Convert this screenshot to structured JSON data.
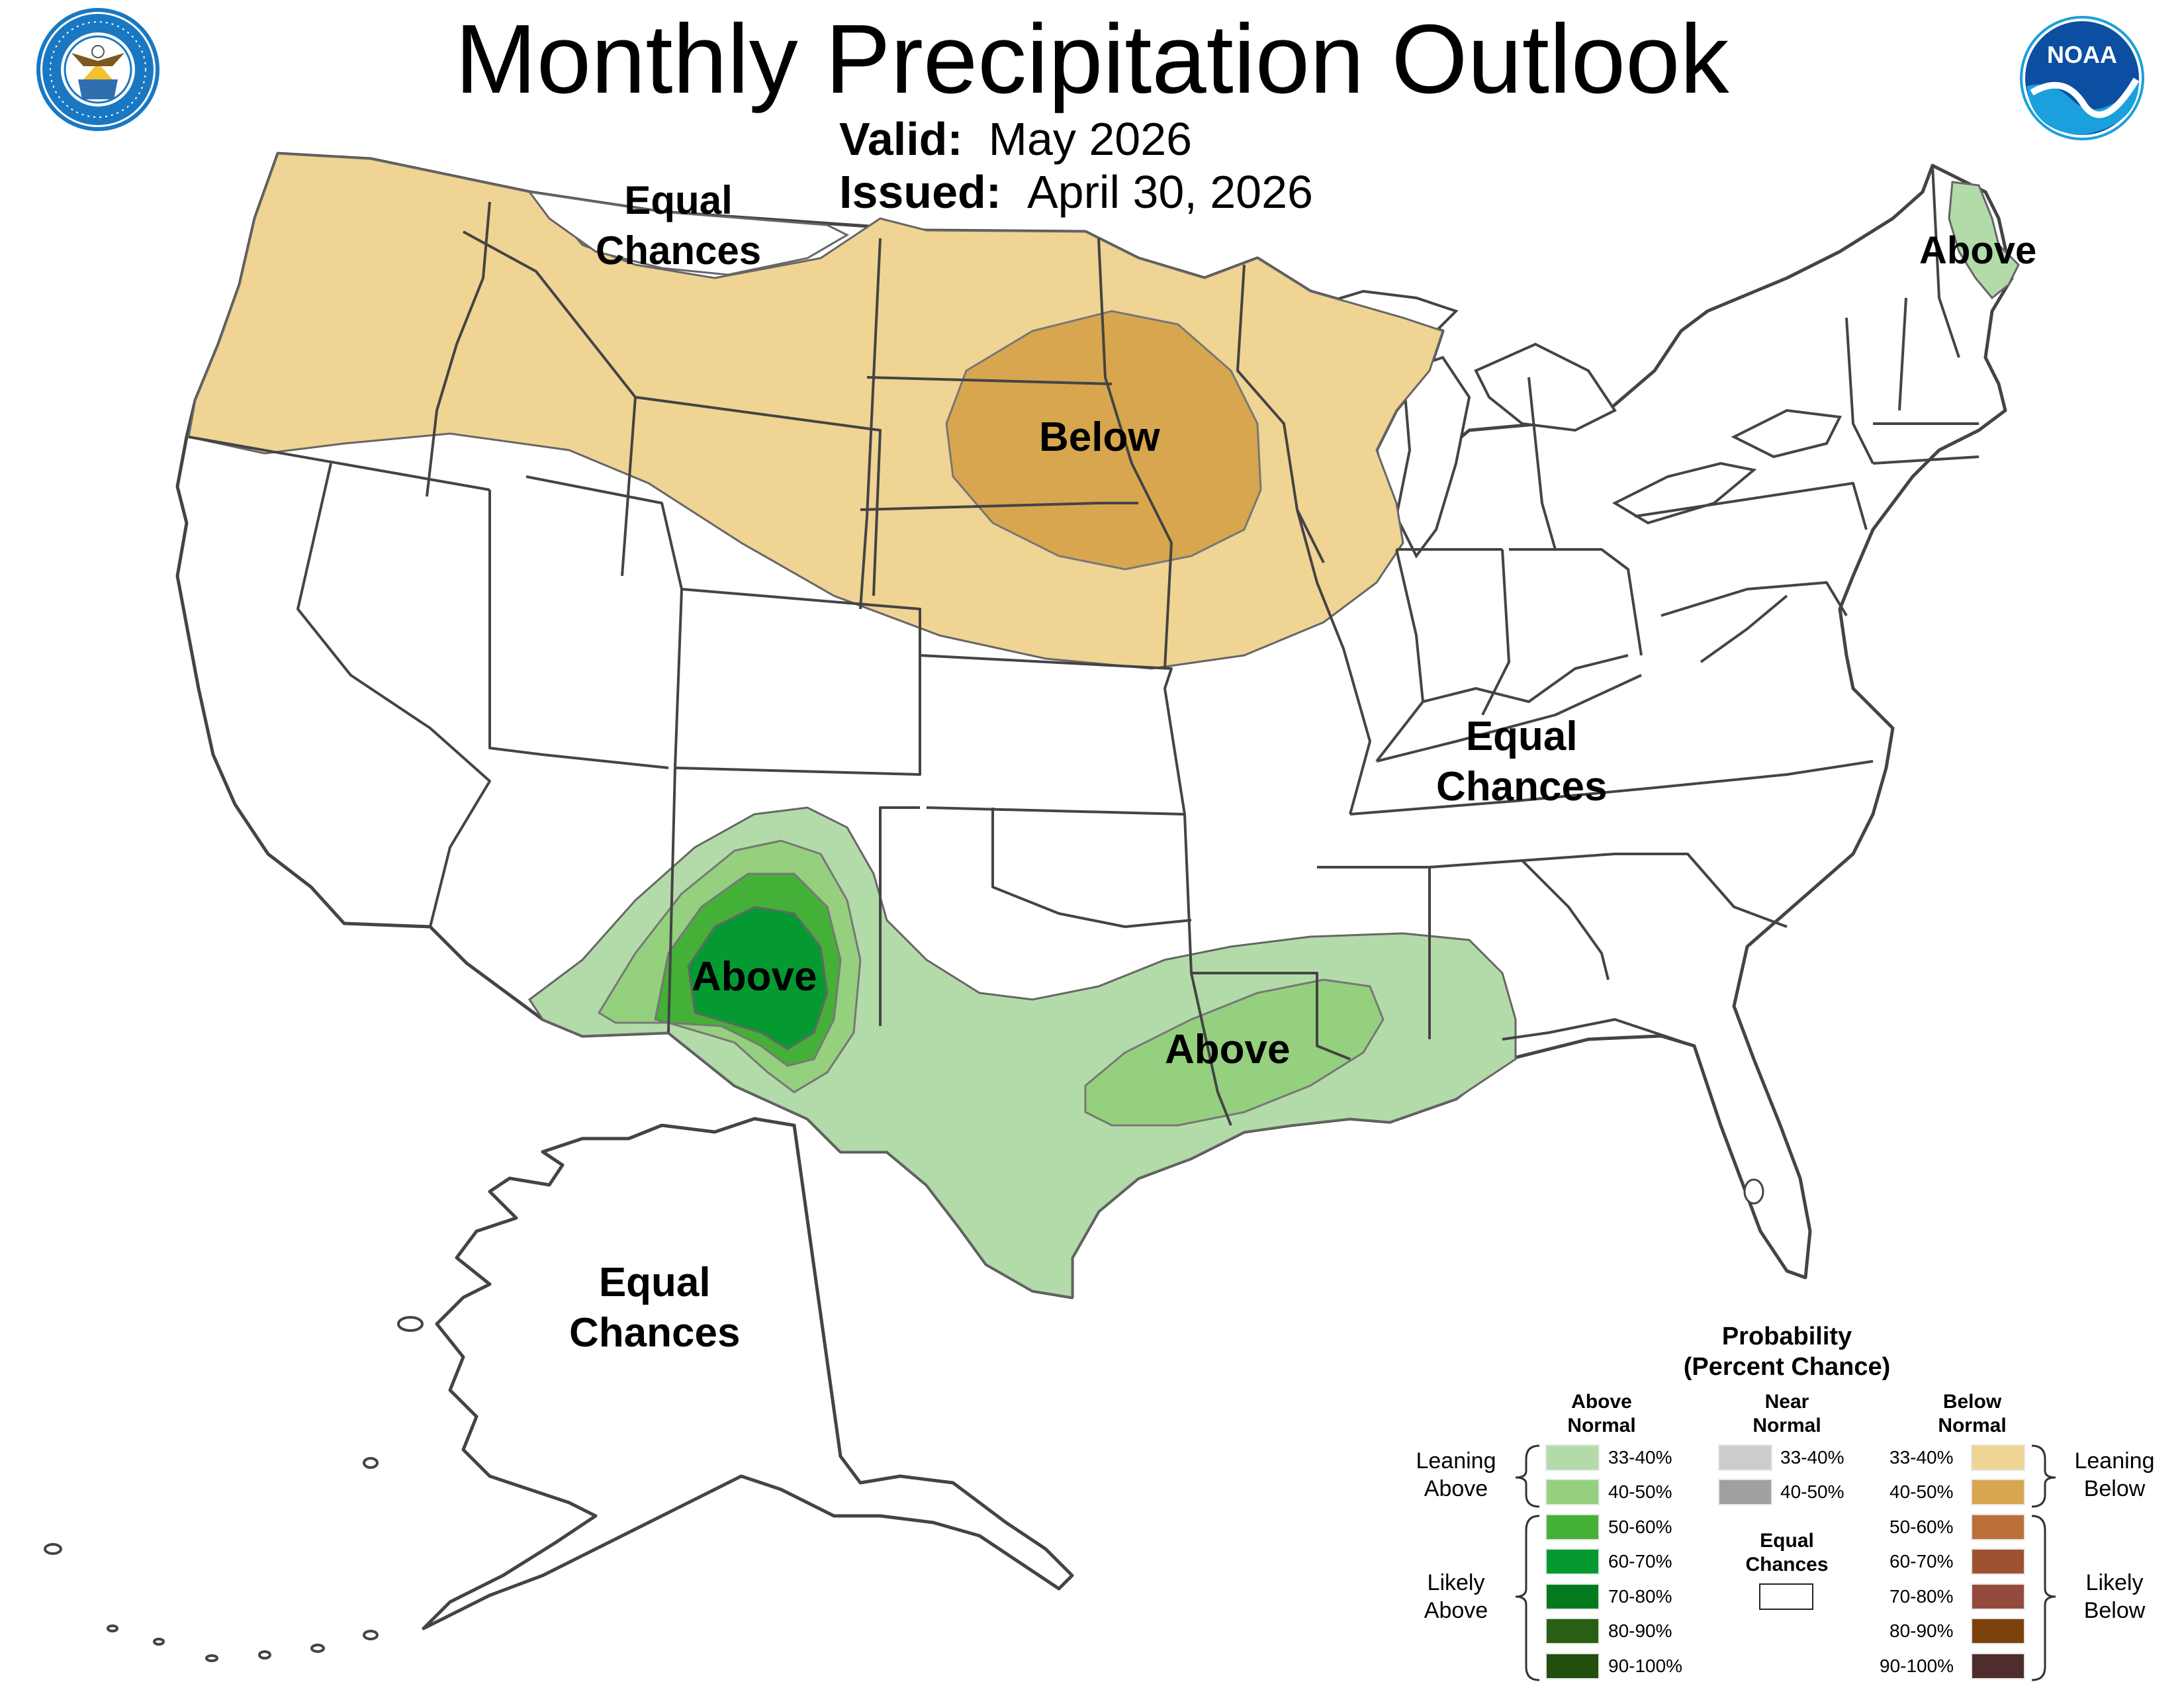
{
  "title": "Monthly Precipitation Outlook",
  "valid_label": "Valid:",
  "valid_value": "May 2026",
  "issued_label": "Issued:",
  "issued_value": "April 30, 2026",
  "logos": {
    "commerce_seal_text_top": "DEPARTMENT OF COMMERCE",
    "commerce_seal_text_bottom": "UNITED STATES OF AMERICA",
    "noaa_text": "NOAA"
  },
  "map_labels": {
    "northwest_ec_1": "Equal",
    "northwest_ec_2": "Chances",
    "northern_plains": "Below",
    "maine": "Above",
    "east_ec_1": "Equal",
    "east_ec_2": "Chances",
    "southwest": "Above",
    "gulf_coast": "Above",
    "alaska_ec_1": "Equal",
    "alaska_ec_2": "Chances"
  },
  "colors": {
    "below_33_40": "#f0d494",
    "below_40_50": "#d8a64e",
    "above_33_40": "#b3dba9",
    "above_40_50": "#95d07e",
    "above_50_60": "#45b037",
    "above_60_70": "#049a31",
    "above_70_80": "#037a1d",
    "above_80_90": "#285f14",
    "above_90_100": "#224f0d",
    "near_33_40": "#cccccc",
    "near_40_50": "#a0a0a0",
    "below_50_60": "#bc6f37",
    "below_60_70": "#9f5231",
    "below_70_80": "#944b3e",
    "below_80_90": "#7b420b",
    "below_90_100": "#4f2d2c",
    "state_line": "#444444"
  },
  "legend": {
    "title_1": "Probability",
    "title_2": "(Percent Chance)",
    "above_head_1": "Above",
    "above_head_2": "Normal",
    "near_head_1": "Near",
    "near_head_2": "Normal",
    "below_head_1": "Below",
    "below_head_2": "Normal",
    "leaning_above_1": "Leaning",
    "leaning_above_2": "Above",
    "likely_above_1": "Likely",
    "likely_above_2": "Above",
    "leaning_below_1": "Leaning",
    "leaning_below_2": "Below",
    "likely_below_1": "Likely",
    "likely_below_2": "Below",
    "equal_chances_1": "Equal",
    "equal_chances_2": "Chances",
    "above_items": [
      "33-40%",
      "40-50%",
      "50-60%",
      "60-70%",
      "70-80%",
      "80-90%",
      "90-100%"
    ],
    "near_items": [
      "33-40%",
      "40-50%"
    ],
    "below_items": [
      "33-40%",
      "40-50%",
      "50-60%",
      "60-70%",
      "70-80%",
      "80-90%",
      "90-100%"
    ]
  }
}
